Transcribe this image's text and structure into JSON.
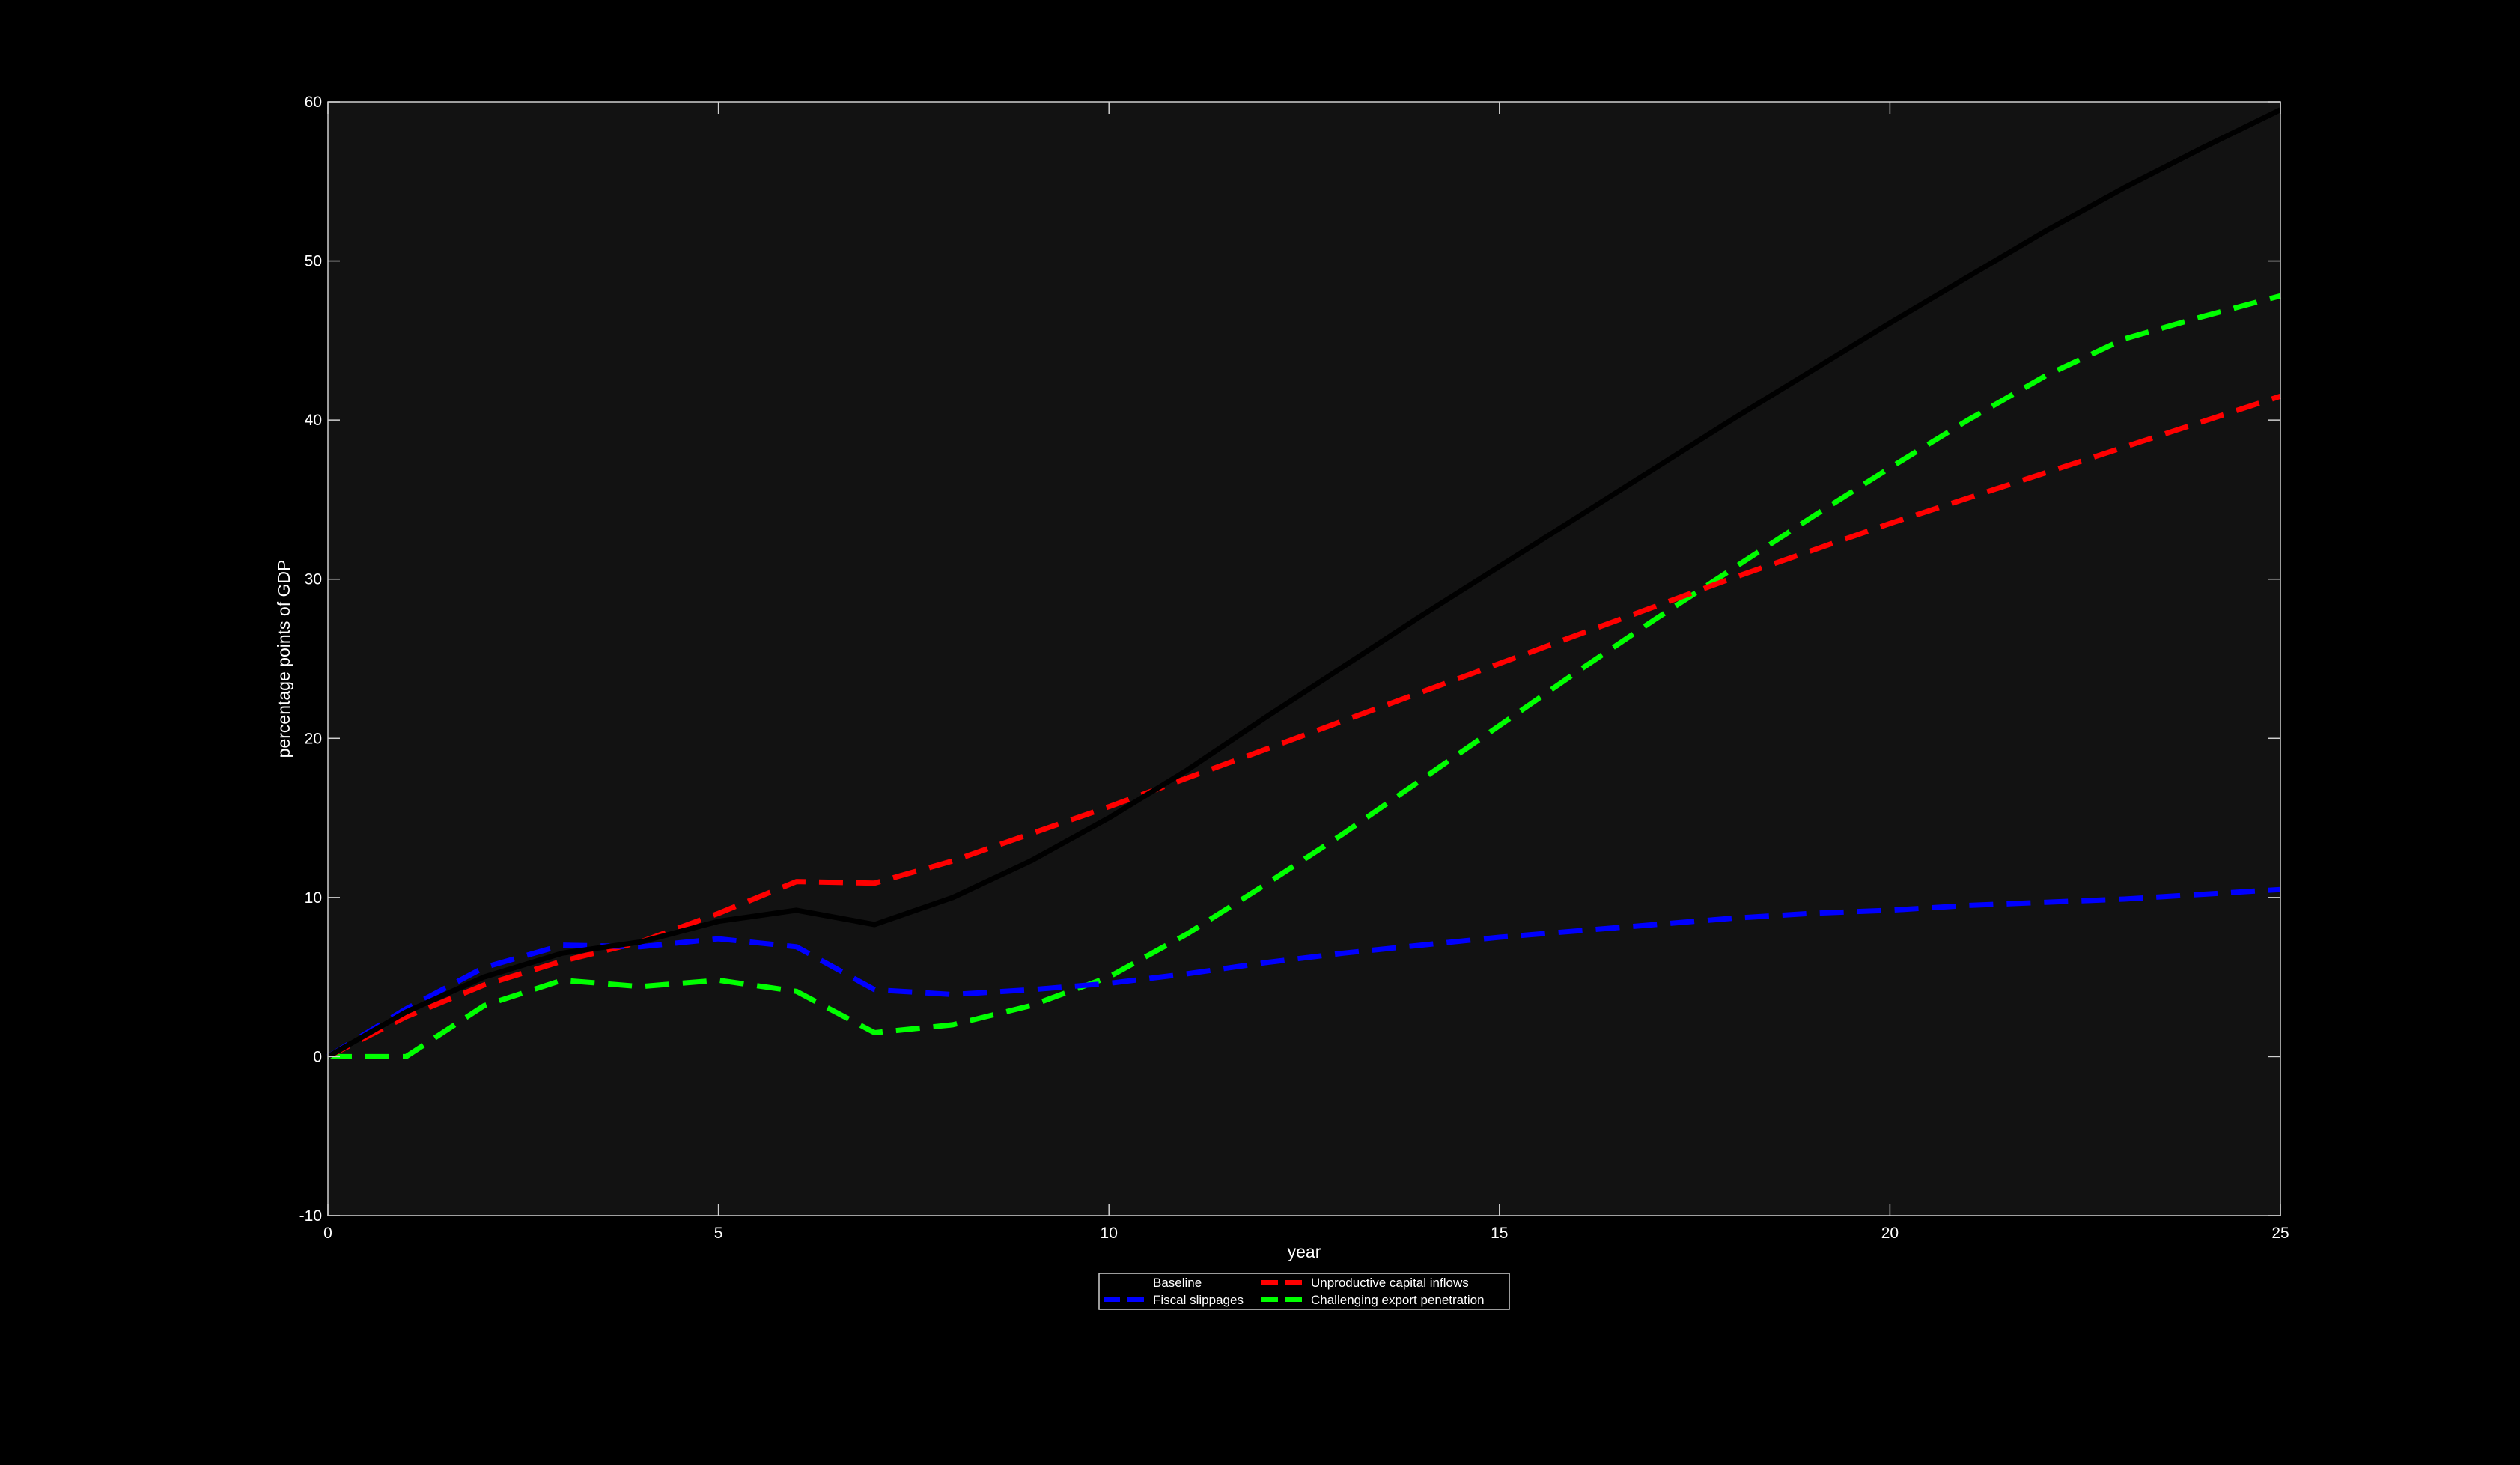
{
  "figure": {
    "background": "#000000",
    "plot_background": "#121212",
    "axis_color": "#d0d0d0",
    "text_color": "#ffffff"
  },
  "chart_data": {
    "type": "line",
    "title": "",
    "xlabel": "year",
    "ylabel": "percentage points of GDP",
    "xlim": [
      0,
      25
    ],
    "ylim": [
      -10,
      60
    ],
    "xticks": [
      0,
      5,
      10,
      15,
      20,
      25
    ],
    "xtick_labels": [
      "0",
      "5",
      "10",
      "15",
      "20",
      "25"
    ],
    "yticks": [
      -10,
      0,
      10,
      20,
      30,
      40,
      50,
      60
    ],
    "ytick_labels": [
      "-10",
      "0",
      "10",
      "20",
      "30",
      "40",
      "50",
      "60"
    ],
    "grid": false,
    "legend": {
      "placement": "bottom-center, below axes",
      "columns": 2,
      "order": [
        "Baseline",
        "Fiscal slippages",
        "Unproductive capital inflows",
        "Challenging export penetration"
      ]
    },
    "x": [
      0,
      1,
      2,
      3,
      4,
      5,
      6,
      7,
      8,
      9,
      10,
      11,
      12,
      13,
      14,
      15,
      16,
      17,
      18,
      19,
      20,
      21,
      22,
      23,
      24,
      25
    ],
    "series": [
      {
        "name": "Baseline",
        "color": "#000000",
        "style": "solid",
        "values": [
          0,
          2.8,
          5.0,
          6.5,
          7.2,
          8.5,
          9.2,
          8.3,
          10.0,
          12.3,
          15.0,
          18.0,
          21.3,
          24.5,
          27.7,
          30.8,
          33.9,
          37.0,
          40.1,
          43.1,
          46.1,
          49.0,
          51.9,
          54.6,
          57.1,
          59.5
        ]
      },
      {
        "name": "Fiscal slippages",
        "color": "#0000ff",
        "style": "dashed",
        "values": [
          0,
          3.0,
          5.6,
          7.0,
          6.9,
          7.4,
          6.9,
          4.2,
          3.9,
          4.2,
          4.6,
          5.2,
          5.9,
          6.5,
          7.0,
          7.5,
          7.9,
          8.3,
          8.7,
          9.0,
          9.2,
          9.5,
          9.7,
          9.9,
          10.2,
          10.5
        ]
      },
      {
        "name": "Unproductive capital inflows",
        "color": "#ff0000",
        "style": "dashed",
        "values": [
          0,
          2.5,
          4.5,
          6.0,
          7.2,
          9.0,
          11.0,
          10.9,
          12.3,
          14.0,
          15.7,
          17.5,
          19.3,
          21.1,
          22.9,
          24.7,
          26.5,
          28.3,
          30.1,
          31.8,
          33.5,
          35.1,
          36.7,
          38.3,
          39.9,
          41.5
        ]
      },
      {
        "name": "Challenging export penetration",
        "color": "#00ff00",
        "style": "dashed",
        "values": [
          0,
          0,
          3.2,
          4.8,
          4.4,
          4.8,
          4.1,
          1.5,
          2.0,
          3.2,
          5.0,
          7.7,
          10.8,
          14.0,
          17.4,
          20.8,
          24.2,
          27.5,
          30.7,
          33.9,
          37.0,
          40.0,
          42.8,
          45.1,
          46.5,
          47.8
        ]
      }
    ]
  }
}
